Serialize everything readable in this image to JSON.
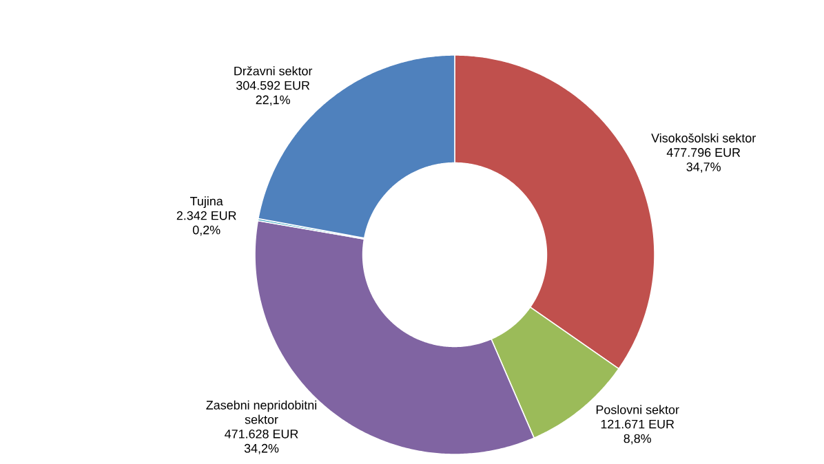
{
  "chart_data": {
    "type": "donut",
    "categories": [
      "Visokošolski sektor",
      "Poslovni sektor",
      "Zasebni nepridobitni sektor",
      "Tujina",
      "Državni sektor"
    ],
    "values": [
      477796,
      121671,
      471628,
      2342,
      304592
    ],
    "value_labels": [
      "477.796 EUR",
      "121.671 EUR",
      "471.628 EUR",
      "2.342 EUR",
      "304.592 EUR"
    ],
    "annotations": [
      {
        "text": "34,7%",
        "x": "Visokošolski sektor"
      },
      {
        "text": "8,8%",
        "x": "Poslovni sektor"
      },
      {
        "text": "34,2%",
        "x": "Zasebni nepridobitni sektor"
      },
      {
        "text": "0,2%",
        "x": "Tujina"
      },
      {
        "text": "22,1%",
        "x": "Državni sektor"
      }
    ],
    "colors": [
      "#c0504d",
      "#9bbb59",
      "#8064a2",
      "#4bacc6",
      "#4f81bd"
    ]
  }
}
